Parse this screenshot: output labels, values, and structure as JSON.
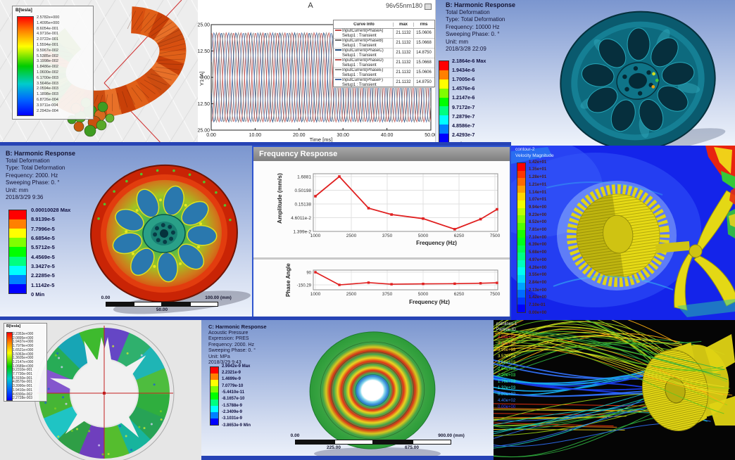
{
  "colors": {
    "ansys_bg_top": "#7b96cf",
    "ansys_bg_bottom": "#eef3fb",
    "ansys_text": "#151535",
    "cfd_blue": "#1424ea",
    "gear_yellow": "#e0d414",
    "curve_red": "#e02020",
    "crosshair_red": "#c32020",
    "axis_red": "#d03030",
    "separator_blue": "#2643b5"
  },
  "panels": {
    "maxwell": {
      "legend_title": "B[tesla]",
      "legend_values": [
        "2.5782e+000",
        "1.4095e+000",
        "8.6054e-001",
        "4.9716e-001",
        "2.0722e-001",
        "1.5594e-001",
        "9.5967e-002",
        "5.5385e-002",
        "3.1998e-002",
        "1.8486e-002",
        "1.0600e-002",
        "6.1700e-003",
        "3.5646e-003",
        "2.0594e-003",
        "1.1898e-003",
        "6.8726e-004",
        "3.9711e-004",
        "2.2942e-004"
      ]
    },
    "xyplot": {
      "title": "A",
      "corner_label": "96v55nm180",
      "ylabel": "Y1 [A]",
      "xlabel": "Time [ms]",
      "yticks": [
        "25.00",
        "12.50",
        "0.00",
        "-12.50",
        "-25.00"
      ],
      "xticks": [
        "0.00",
        "10.00",
        "20.00",
        "30.00",
        "40.00",
        "50.00"
      ],
      "legend_header": [
        "Curve Info",
        "max",
        "rms"
      ],
      "curves": [
        {
          "label": "InputCurrent(PhaseA)",
          "sub": "Setup1 : Transient",
          "max": "21.1132",
          "rms": "15.0606",
          "color": "#c0504d",
          "phase_deg": 80
        },
        {
          "label": "InputCurrent(PhaseB)",
          "sub": "Setup1 : Transient",
          "max": "21.1132",
          "rms": "15.0668",
          "color": "#6b6b6b",
          "phase_deg": -40
        },
        {
          "label": "InputCurrent(PhaseC)",
          "sub": "Setup1 : Transient",
          "max": "21.1132",
          "rms": "14.8750",
          "color": "#1f497d",
          "phase_deg": -160
        },
        {
          "label": "InputCurrent(PhaseD)",
          "sub": "Setup1 : Transient",
          "max": "21.1132",
          "rms": "15.0668",
          "color": "#c0504d",
          "phase_deg": 260
        },
        {
          "label": "InputCurrent(PhaseE)",
          "sub": "Setup1 : Transient",
          "max": "21.1132",
          "rms": "15.0606",
          "color": "#8b8b8b",
          "phase_deg": 140
        },
        {
          "label": "InputCurrent(PhaseF)",
          "sub": "Setup1 : Transient",
          "max": "21.1132",
          "rms": "14.8750",
          "color": "#4a6ea8",
          "phase_deg": 20
        }
      ],
      "amplitude": 21.1132,
      "period_ms": 3.3333
    },
    "harm10k": {
      "title": "B: Harmonic Response",
      "lines": [
        "Total Deformation",
        "Type: Total Deformation",
        "Frequency: 10000 Hz",
        "Sweeping Phase: 0. °",
        "Unit: mm",
        "2018/3/28 22:09"
      ],
      "colorbar": [
        "2.1864e-6 Max",
        "1.9434e-6",
        "1.7005e-6",
        "1.4576e-6",
        "1.2147e-6",
        "9.7172e-7",
        "7.2879e-7",
        "4.8586e-7",
        "2.4293e-7",
        "0 Min"
      ]
    },
    "harm2k": {
      "title": "B: Harmonic Response",
      "lines": [
        "Total Deformation",
        "Type: Total Deformation",
        "Frequency: 2000. Hz",
        "Sweeping Phase: 0. °",
        "Unit: mm",
        "2018/3/29 9:36"
      ],
      "colorbar": [
        "0.00010028 Max",
        "8.9139e-5",
        "7.7996e-5",
        "6.6854e-5",
        "5.5712e-5",
        "4.4569e-5",
        "3.3427e-5",
        "2.2285e-5",
        "1.1142e-5",
        "0 Min"
      ],
      "ruler": {
        "start": "0.00",
        "mid": "50.00",
        "end": "100.00 (mm)"
      }
    },
    "freqresp": {
      "window_title": "Frequency Response",
      "amp_ylabel": "Amplitude (mm/s)",
      "amp_yticks": [
        "1.6881",
        "0.50198",
        "0.15138",
        "4.6011e-2",
        "1.399e-2"
      ],
      "xticks": [
        "1000",
        "2500",
        "3750",
        "5000",
        "6250",
        "7500"
      ],
      "xlabel": "Frequency (Hz)",
      "phase_ylabel": "Phase Angle",
      "phase_yticks": [
        "90",
        "-150.29"
      ]
    },
    "cfd": {
      "legend_line1": "contour-2",
      "legend_line2": "Velocity Magnitude",
      "values": [
        "1.42e+01",
        "1.35e+01",
        "1.28e+01",
        "1.21e+01",
        "1.14e+01",
        "1.07e+01",
        "9.94e+00",
        "9.23e+00",
        "8.52e+00",
        "7.81e+00",
        "7.10e+00",
        "6.39e+00",
        "5.68e+00",
        "4.97e+00",
        "4.26e+00",
        "3.55e+00",
        "2.84e+00",
        "2.13e+00",
        "1.42e+00",
        "7.10e-01",
        "0.00e+00"
      ]
    },
    "rotor": {
      "legend_title": "B[tesla]",
      "legend_values": [
        "2.2353e+000",
        "2.0895e+000",
        "1.9437e+000",
        "1.7979e+000",
        "1.6521e+000",
        "1.5063e+000",
        "1.3605e+000",
        "1.2147e+000",
        "1.0689e+000",
        "9.2310e-001",
        "7.7730e-001",
        "6.3150e-001",
        "4.8570e-001",
        "3.3990e-001",
        "1.9410e-001",
        "4.8300e-002",
        "2.2728e-003"
      ]
    },
    "acoustic": {
      "title": "C: Harmonic Response",
      "lines": [
        "Acoustic Pressure",
        "Expression: PRES",
        "Frequency: 2000. Hz",
        "Sweeping Phase: 0. °",
        "Unit: MPa",
        "2018/3/29 9:43"
      ],
      "colorbar": [
        "2.9942e-9 Max",
        "2.2321e-9",
        "1.4699e-9",
        "7.0779e-10",
        "-5.4410e-11",
        "-8.1657e-10",
        "-1.5788e-9",
        "-2.3409e-9",
        "-3.1031e-9",
        "-3.8653e-9 Min"
      ],
      "ruler": {
        "start": "0.00",
        "q1": "225.00",
        "q3": "675.00",
        "end": "900.00 (mm)"
      }
    },
    "stream": {
      "legend_line1": "pathlines-1",
      "legend_line2": "Particle ID",
      "values": [
        "4.84e+03",
        "4.40e+03",
        "3.96e+03",
        "3.52e+03",
        "3.08e+03",
        "2.64e+03",
        "2.20e+03",
        "1.76e+03",
        "1.32e+03",
        "8.80e+02",
        "4.40e+02",
        "0.00e+00"
      ]
    }
  },
  "chart_data": [
    {
      "type": "line",
      "title": "A",
      "xlabel": "Time [ms]",
      "ylabel": "Y1 [A]",
      "x_range_ms": [
        0,
        50
      ],
      "ylim": [
        -25,
        25
      ],
      "grid": false,
      "legend_position": "right",
      "series": [
        {
          "name": "InputCurrent(PhaseA)",
          "waveform": "sine",
          "amplitude": 21.1132,
          "period_ms": 3.3333,
          "max": 21.1132,
          "rms": 15.0606
        },
        {
          "name": "InputCurrent(PhaseB)",
          "waveform": "sine",
          "amplitude": 21.1132,
          "period_ms": 3.3333,
          "max": 21.1132,
          "rms": 15.0668
        },
        {
          "name": "InputCurrent(PhaseC)",
          "waveform": "sine",
          "amplitude": 21.1132,
          "period_ms": 3.3333,
          "max": 21.1132,
          "rms": 14.875
        },
        {
          "name": "InputCurrent(PhaseD)",
          "waveform": "sine",
          "amplitude": 21.1132,
          "period_ms": 3.3333,
          "max": 21.1132,
          "rms": 15.0668
        },
        {
          "name": "InputCurrent(PhaseE)",
          "waveform": "sine",
          "amplitude": 21.1132,
          "period_ms": 3.3333,
          "max": 21.1132,
          "rms": 15.0606
        },
        {
          "name": "InputCurrent(PhaseF)",
          "waveform": "sine",
          "amplitude": 21.1132,
          "period_ms": 3.3333,
          "max": 21.1132,
          "rms": 14.875
        }
      ]
    },
    {
      "type": "line",
      "title": "Frequency Response - Amplitude",
      "xlabel": "Frequency (Hz)",
      "ylabel": "Amplitude (mm/s)",
      "yscale": "log",
      "xlim": [
        1000,
        7700
      ],
      "x": [
        1000,
        2000,
        3100,
        3900,
        5000,
        6100,
        7000,
        7700
      ],
      "y": [
        0.3,
        1.6881,
        0.105,
        0.06,
        0.042,
        0.0165,
        0.04,
        0.095
      ]
    },
    {
      "type": "line",
      "title": "Frequency Response - Phase",
      "xlabel": "Frequency (Hz)",
      "ylabel": "Phase Angle",
      "xlim": [
        1000,
        7700
      ],
      "x": [
        1000,
        2000,
        3100,
        3900,
        5000,
        6100,
        7000,
        7700
      ],
      "y": [
        90,
        -150.29,
        -108,
        -138,
        -132,
        -128,
        -120,
        -112
      ]
    }
  ]
}
